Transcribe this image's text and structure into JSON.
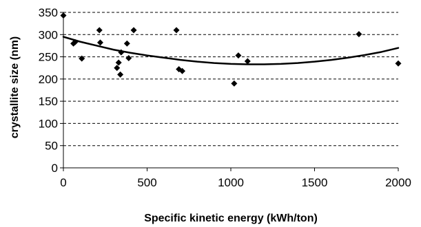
{
  "chart_data": {
    "type": "scatter",
    "title": "",
    "xlabel": "Specific kinetic energy (kWh/ton)",
    "ylabel": "crystallite size (nm)",
    "xlim": [
      0,
      2000
    ],
    "ylim": [
      0,
      350
    ],
    "x_ticks": [
      0,
      500,
      1000,
      1500,
      2000
    ],
    "y_ticks": [
      0,
      50,
      100,
      150,
      200,
      250,
      300,
      350
    ],
    "grid": "horizontal dashed",
    "legend": "none",
    "colors": {
      "marker": "#000000",
      "trendline": "#000000",
      "grid": "#000000"
    },
    "series": [
      {
        "marker": "diamond",
        "x": [
          0,
          60,
          70,
          110,
          215,
          220,
          320,
          330,
          340,
          345,
          380,
          390,
          420,
          675,
          690,
          710,
          1020,
          1045,
          1100,
          1765,
          2000
        ],
        "y": [
          343,
          280,
          283,
          246,
          310,
          282,
          225,
          237,
          210,
          260,
          280,
          247,
          310,
          310,
          222,
          218,
          190,
          253,
          240,
          301,
          235
        ]
      }
    ],
    "trendline": {
      "type": "polynomial",
      "x": [
        0,
        100,
        200,
        300,
        400,
        500,
        600,
        700,
        800,
        900,
        1000,
        1100,
        1200,
        1300,
        1400,
        1500,
        1600,
        1700,
        1800,
        1900,
        2000
      ],
      "y": [
        295,
        284,
        275,
        266,
        259,
        253,
        248,
        243,
        239,
        236,
        234,
        233,
        233,
        234,
        236,
        239,
        243,
        248,
        254,
        261,
        270
      ]
    }
  }
}
